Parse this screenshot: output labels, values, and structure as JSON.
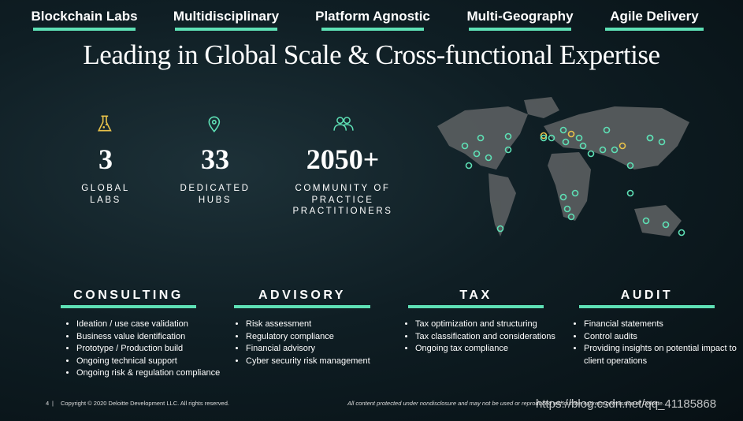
{
  "tags": [
    "Blockchain Labs",
    "Multidisciplinary",
    "Platform Agnostic",
    "Multi-Geography",
    "Agile Delivery"
  ],
  "title": "Leading  in Global Scale & Cross-functional Expertise",
  "stats": [
    {
      "number": "3",
      "label": [
        "GLOBAL",
        "LABS"
      ]
    },
    {
      "number": "33",
      "label": [
        "DEDICATED",
        "HUBS"
      ]
    },
    {
      "number": "2050+",
      "label": [
        "COMMUNITY OF",
        "PRACTICE",
        "PRACTITIONERS"
      ]
    }
  ],
  "services": [
    {
      "title": "CONSULTING",
      "bullets": [
        "Ideation / use case validation",
        "Business value identification",
        "Prototype / Production build",
        "Ongoing technical support",
        "Ongoing risk & regulation compliance"
      ]
    },
    {
      "title": "ADVISORY",
      "bullets": [
        "Risk assessment",
        "Regulatory compliance",
        "Financial advisory",
        "Cyber security risk management"
      ]
    },
    {
      "title": "TAX",
      "bullets": [
        "Tax optimization and structuring",
        "Tax classification and considerations",
        "Ongoing tax compliance"
      ]
    },
    {
      "title": "AUDIT",
      "bullets": [
        "Financial statements",
        "Control audits",
        "Providing insights on potential impact to client operations"
      ]
    }
  ],
  "footer": {
    "page": "4",
    "copyright": "Copyright © 2020 Deloitte Development LLC. All rights reserved.",
    "disclaimer": "All content protected under nondisclosure and may not be used or reproduced without the express permission of Deloitte."
  },
  "watermark": "https://blog.csdn.net/qq_41185868"
}
